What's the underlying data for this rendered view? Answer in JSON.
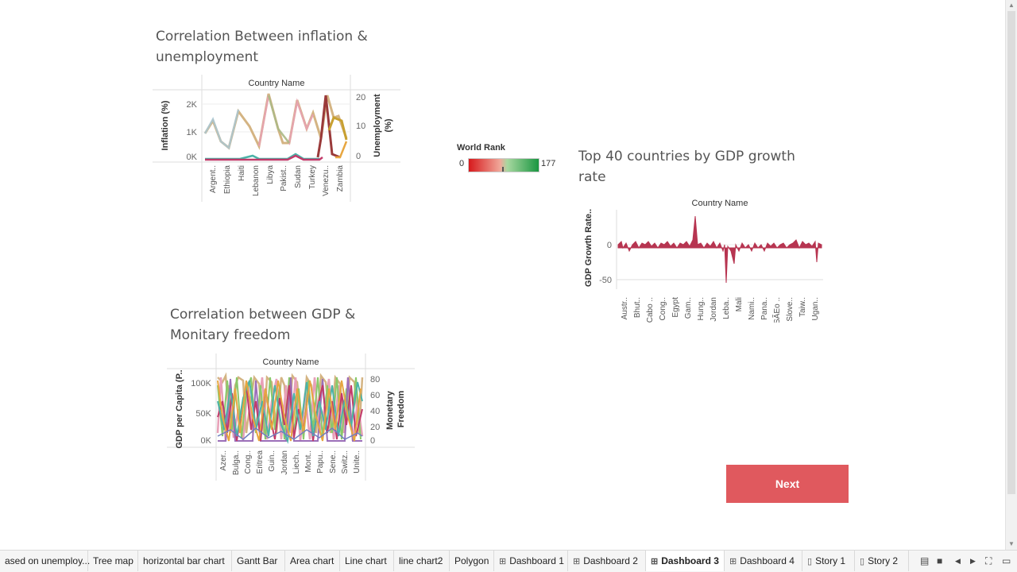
{
  "colors": {
    "accent": "#e0595e",
    "rank_low": "#d7191c",
    "rank_high": "#1a9641"
  },
  "chart1": {
    "title_line1": "Correlation Between inflation &",
    "title_line2": "unemployment",
    "header": "Country Name",
    "ylabel_left": "Inflation (%)",
    "ylabel_right": "Unemployment (%)",
    "left_ticks": [
      "2K",
      "1K",
      "0K"
    ],
    "right_ticks": [
      "20",
      "10",
      "0"
    ],
    "x_labels": [
      "Argent..",
      "Ethiopia",
      "Haiti",
      "Lebanon",
      "Libya",
      "Pakist..",
      "Sudan",
      "Turkey",
      "Venezu..",
      "Zambia"
    ]
  },
  "legend": {
    "title": "World Rank",
    "min": "0",
    "max": "177"
  },
  "chart2": {
    "title_line1": "Top 40 countries by GDP growth",
    "title_line2": "rate",
    "header": "Country Name",
    "ylabel": "GDP Growth Rate..",
    "ticks": [
      "0",
      "-50"
    ],
    "x_labels": [
      "Austr..",
      "Bhut..",
      "Cabo ..",
      "Cong..",
      "Egypt",
      "Gam..",
      "Hung..",
      "Jordan",
      "Leba..",
      "Mali",
      "Nami..",
      "Pana..",
      "SÃEo ..",
      "Slove..",
      "Taiw..",
      "Ugan.."
    ]
  },
  "chart3": {
    "title_line1": "Correlation between GDP &",
    "title_line2": "Monitary freedom",
    "header": "Country Name",
    "ylabel_left": "GDP per Capita (P..",
    "ylabel_right_1": "Monetary",
    "ylabel_right_2": "Freedom",
    "left_ticks": [
      "100K",
      "50K",
      "0K"
    ],
    "right_ticks": [
      "80",
      "60",
      "40",
      "20",
      "0"
    ],
    "x_labels": [
      "Azer..",
      "Bulga..",
      "Cong..",
      "Eritrea",
      "Guin..",
      "Jordan",
      "Liech..",
      "Mont..",
      "Papu..",
      "Sene..",
      "Switz..",
      "Unite.."
    ]
  },
  "next_button": "Next",
  "tabs": [
    {
      "label": "ased on unemploy...",
      "icon": ""
    },
    {
      "label": "Tree map",
      "icon": ""
    },
    {
      "label": "horizontal bar chart",
      "icon": ""
    },
    {
      "label": "Gantt Bar",
      "icon": ""
    },
    {
      "label": "Area chart",
      "icon": ""
    },
    {
      "label": "Line chart",
      "icon": ""
    },
    {
      "label": "line chart2",
      "icon": ""
    },
    {
      "label": "Polygon",
      "icon": ""
    },
    {
      "label": "Dashboard 1",
      "icon": "dashboard-icon"
    },
    {
      "label": "Dashboard 2",
      "icon": "dashboard-icon"
    },
    {
      "label": "Dashboard 3",
      "icon": "dashboard-icon"
    },
    {
      "label": "Dashboard 4",
      "icon": "dashboard-icon"
    },
    {
      "label": "Story 1",
      "icon": "story-icon"
    },
    {
      "label": "Story 2",
      "icon": "story-icon"
    }
  ],
  "active_tab": "Dashboard 3"
}
